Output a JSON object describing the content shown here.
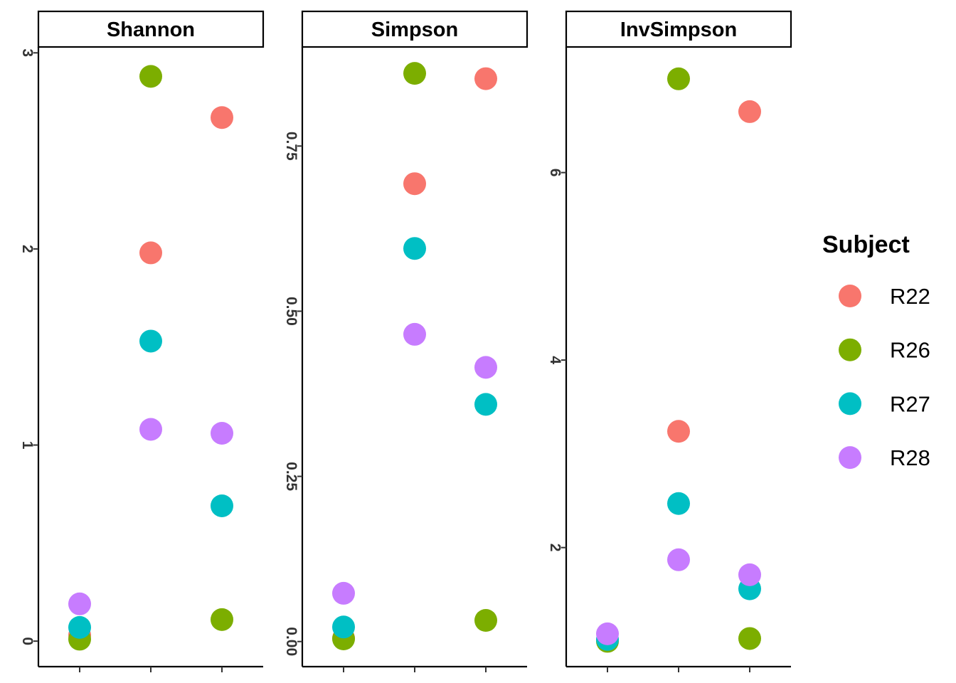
{
  "chart_data": {
    "type": "scatter",
    "facet_layout": "1 row x 3 columns, free y scales",
    "grid": false,
    "legend": {
      "title": "Subject",
      "position": "right",
      "entries": [
        {
          "name": "R22",
          "color": "#F8766D"
        },
        {
          "name": "R26",
          "color": "#7CAE00"
        },
        {
          "name": "R27",
          "color": "#00BFC4"
        },
        {
          "name": "R28",
          "color": "#C77CFF"
        }
      ]
    },
    "x_positions": 3,
    "panels": [
      {
        "title": "Shannon",
        "ylim": [
          -0.13,
          3.03
        ],
        "yticks": [
          0,
          1,
          2,
          3
        ],
        "ytick_labels": [
          "0",
          "1",
          "2",
          "3"
        ],
        "series": [
          {
            "name": "R22",
            "points": [
              [
                1,
                0.03
              ],
              [
                2,
                1.98
              ],
              [
                3,
                2.67
              ]
            ]
          },
          {
            "name": "R26",
            "points": [
              [
                1,
                0.01
              ],
              [
                2,
                2.88
              ],
              [
                3,
                0.11
              ]
            ]
          },
          {
            "name": "R27",
            "points": [
              [
                1,
                0.07
              ],
              [
                2,
                1.53
              ],
              [
                3,
                0.69
              ]
            ]
          },
          {
            "name": "R28",
            "points": [
              [
                1,
                0.19
              ],
              [
                2,
                1.08
              ],
              [
                3,
                1.06
              ]
            ]
          }
        ]
      },
      {
        "title": "Simpson",
        "ylim": [
          -0.038,
          0.9
        ],
        "yticks": [
          0,
          0.25,
          0.5,
          0.75
        ],
        "ytick_labels": [
          "0.00",
          "0.25",
          "0.50",
          "0.75"
        ],
        "series": [
          {
            "name": "R22",
            "points": [
              [
                1,
                0.005
              ],
              [
                2,
                0.693
              ],
              [
                3,
                0.852
              ]
            ]
          },
          {
            "name": "R26",
            "points": [
              [
                1,
                0.004
              ],
              [
                2,
                0.86
              ],
              [
                3,
                0.032
              ]
            ]
          },
          {
            "name": "R27",
            "points": [
              [
                1,
                0.022
              ],
              [
                2,
                0.595
              ],
              [
                3,
                0.359
              ]
            ]
          },
          {
            "name": "R28",
            "points": [
              [
                1,
                0.073
              ],
              [
                2,
                0.465
              ],
              [
                3,
                0.415
              ]
            ]
          }
        ]
      },
      {
        "title": "InvSimpson",
        "ylim": [
          0.73,
          7.34
        ],
        "yticks": [
          2,
          4,
          6
        ],
        "ytick_labels": [
          "2",
          "4",
          "6"
        ],
        "series": [
          {
            "name": "R22",
            "points": [
              [
                1,
                1.01
              ],
              [
                2,
                3.24
              ],
              [
                3,
                6.65
              ]
            ]
          },
          {
            "name": "R26",
            "points": [
              [
                1,
                1.0
              ],
              [
                2,
                7.0
              ],
              [
                3,
                1.03
              ]
            ]
          },
          {
            "name": "R27",
            "points": [
              [
                1,
                1.02
              ],
              [
                2,
                2.47
              ],
              [
                3,
                1.56
              ]
            ]
          },
          {
            "name": "R28",
            "points": [
              [
                1,
                1.08
              ],
              [
                2,
                1.87
              ],
              [
                3,
                1.71
              ]
            ]
          }
        ]
      }
    ]
  }
}
